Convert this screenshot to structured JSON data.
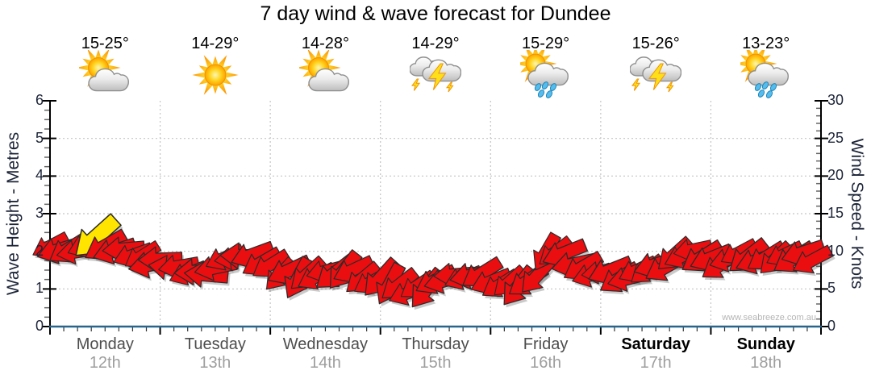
{
  "chart_data": {
    "type": "scatter",
    "title": "7 day wind & wave forecast for Dundee",
    "ylabel_left": "Wave Height - Metres",
    "ylabel_right": "Wind Speed - Knots",
    "watermark": "www.seabreeze.com.au",
    "left_axis": {
      "min": 0,
      "max": 6,
      "ticks": [
        0,
        1,
        2,
        3,
        4,
        5,
        6
      ],
      "minor_step": 0.25
    },
    "right_axis": {
      "min": 0,
      "max": 30,
      "ticks": [
        0,
        5,
        10,
        15,
        20,
        25,
        30
      ],
      "minor_step": 1
    },
    "x_axis": {
      "days_total": 7,
      "hours_total": 168,
      "minor_tick_hours": 3
    },
    "grid_color": "#c4c4c4",
    "days": [
      {
        "name": "Monday",
        "date": "12th",
        "temp_range": "15-25°",
        "icon": "sun-cloud",
        "bold": false
      },
      {
        "name": "Tuesday",
        "date": "13th",
        "temp_range": "14-29°",
        "icon": "sun",
        "bold": false
      },
      {
        "name": "Wednesday",
        "date": "14th",
        "temp_range": "14-28°",
        "icon": "sun-cloud",
        "bold": false
      },
      {
        "name": "Thursday",
        "date": "15th",
        "temp_range": "14-29°",
        "icon": "storm",
        "bold": false
      },
      {
        "name": "Friday",
        "date": "16th",
        "temp_range": "15-29°",
        "icon": "sun-rain",
        "bold": false
      },
      {
        "name": "Saturday",
        "date": "17th",
        "temp_range": "15-26°",
        "icon": "storm",
        "bold": true
      },
      {
        "name": "Sunday",
        "date": "18th",
        "temp_range": "13-23°",
        "icon": "sun-rain",
        "bold": true
      }
    ],
    "wind": {
      "step_hours": 2,
      "knots": [
        10.3,
        10.4,
        10.2,
        10.5,
        10.8,
        11.3,
        11.0,
        10.5,
        10.0,
        9.6,
        9.2,
        8.8,
        8.4,
        8.0,
        7.6,
        7.3,
        7.2,
        7.4,
        7.8,
        8.6,
        9.4,
        9.8,
        9.2,
        8.6,
        8.0,
        7.4,
        6.9,
        6.6,
        6.5,
        6.8,
        7.3,
        7.6,
        7.4,
        7.0,
        6.7,
        6.4,
        6.1,
        5.7,
        5.3,
        5.0,
        4.9,
        5.2,
        5.7,
        6.3,
        6.8,
        7.0,
        6.8,
        6.5,
        6.3,
        6.0,
        5.6,
        5.4,
        5.8,
        7.2,
        9.3,
        10.1,
        9.3,
        8.5,
        7.8,
        7.4,
        7.2,
        6.9,
        6.7,
        6.8,
        7.2,
        7.6,
        8.0,
        8.4,
        9.0,
        9.6,
        9.8,
        9.4,
        9.0,
        8.7,
        8.9,
        9.3,
        9.6,
        9.2,
        8.9,
        9.1,
        9.4,
        9.6,
        9.3,
        9.0
      ],
      "dir_deg": [
        152,
        163,
        148,
        170,
        158,
        138,
        150,
        162,
        175,
        160,
        148,
        168,
        178,
        188,
        170,
        158,
        176,
        185,
        168,
        155,
        172,
        182,
        160,
        150,
        148,
        132,
        155,
        118,
        138,
        152,
        165,
        142,
        128,
        155,
        140,
        150,
        132,
        118,
        142,
        158,
        146,
        128,
        152,
        165,
        175,
        158,
        168,
        148,
        158,
        148,
        138,
        128,
        145,
        132,
        120,
        142,
        158,
        168,
        150,
        162,
        172,
        158,
        148,
        166,
        154,
        142,
        162,
        150,
        138,
        156,
        168,
        148,
        158,
        146,
        164,
        152,
        142,
        160,
        148,
        136,
        154,
        148,
        162,
        152
      ],
      "highlight_index": 5,
      "arrow_color": "#ea0e10",
      "highlight_color": "#ffe400",
      "outline_color": "#2b2b2b"
    },
    "wave": {
      "constant_m": 0,
      "color": "#27658c"
    }
  }
}
